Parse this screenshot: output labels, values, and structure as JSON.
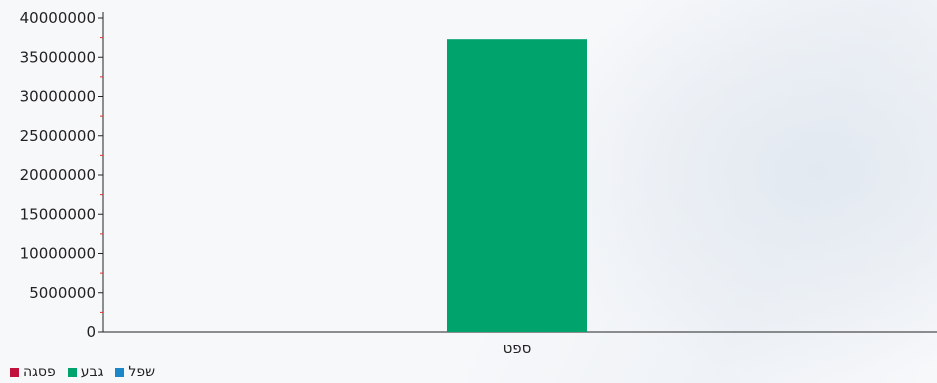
{
  "chart_data": {
    "type": "bar",
    "categories": [
      "ספט"
    ],
    "series": [
      {
        "name": "שפל",
        "values": [
          0
        ],
        "color": "#1a87c8"
      },
      {
        "name": "גבע",
        "values": [
          37300000
        ],
        "color": "#00a36c"
      },
      {
        "name": "פסגה",
        "values": [
          0
        ],
        "color": "#c0123c"
      }
    ],
    "ylim": [
      0,
      40000000
    ],
    "yticks": [
      0,
      5000000,
      10000000,
      15000000,
      20000000,
      25000000,
      30000000,
      35000000,
      40000000
    ],
    "grid": false,
    "legend_position": "bottom-left"
  }
}
